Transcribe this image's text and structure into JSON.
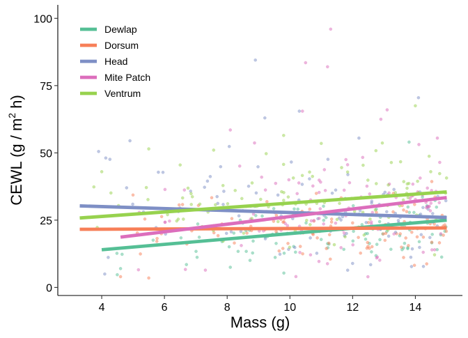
{
  "chart_data": {
    "type": "scatter",
    "title": "",
    "xlabel": "Mass (g)",
    "ylabel_parts": [
      "CEWL (g / m",
      "2",
      " h)"
    ],
    "xlim": [
      2.6,
      15.5
    ],
    "ylim": [
      -3,
      105
    ],
    "x_ticks": [
      4,
      6,
      8,
      10,
      12,
      14
    ],
    "y_ticks": [
      0,
      25,
      50,
      75,
      100
    ],
    "grid": false,
    "legend_position": "top-left",
    "point_count": 520,
    "series": [
      {
        "name": "Dewlap",
        "color": "#55BF95",
        "line": {
          "x": [
            4.0,
            15.0
          ],
          "y": [
            14.0,
            25.0
          ]
        },
        "points": {
          "x_range": [
            4.0,
            15.0
          ],
          "center": [
            14,
            25
          ],
          "spread": 6
        }
      },
      {
        "name": "Dorsum",
        "color": "#F77F58",
        "line": {
          "x": [
            3.3,
            15.0
          ],
          "y": [
            21.6,
            22.1
          ]
        },
        "points": {
          "x_range": [
            4.6,
            15.0
          ],
          "center": [
            21.6,
            22.1
          ],
          "spread": 6
        }
      },
      {
        "name": "Head",
        "color": "#7E8FC5",
        "line": {
          "x": [
            3.3,
            15.0
          ],
          "y": [
            30.3,
            26.0
          ]
        },
        "points": {
          "x_range": [
            3.3,
            15.0
          ],
          "center": [
            30.3,
            26.0
          ],
          "spread": 9
        }
      },
      {
        "name": "Mite Patch",
        "color": "#DC6EBC",
        "line": {
          "x": [
            4.6,
            15.0
          ],
          "y": [
            18.7,
            33.4
          ]
        },
        "points": {
          "x_range": [
            4.6,
            15.0
          ],
          "center": [
            18.7,
            33.4
          ],
          "spread": 9
        }
      },
      {
        "name": "Ventrum",
        "color": "#97D24E",
        "line": {
          "x": [
            3.3,
            15.0
          ],
          "y": [
            25.8,
            35.5
          ]
        },
        "points": {
          "x_range": [
            3.3,
            15.0
          ],
          "center": [
            25.8,
            35.5
          ],
          "spread": 9
        }
      }
    ],
    "outliers": [
      {
        "series": "Mite Patch",
        "x": 11.3,
        "y": 96
      },
      {
        "series": "Mite Patch",
        "x": 10.5,
        "y": 83.5
      },
      {
        "series": "Mite Patch",
        "x": 11.2,
        "y": 82
      },
      {
        "series": "Head",
        "x": 8.9,
        "y": 84.5
      },
      {
        "series": "Head",
        "x": 14.1,
        "y": 70.5
      },
      {
        "series": "Ventrum",
        "x": 14.0,
        "y": 67.5
      },
      {
        "series": "Mite Patch",
        "x": 13.1,
        "y": 66
      },
      {
        "series": "Head",
        "x": 10.3,
        "y": 65.5
      },
      {
        "series": "Mite Patch",
        "x": 10.4,
        "y": 65.5
      },
      {
        "series": "Head",
        "x": 9.2,
        "y": 63
      },
      {
        "series": "Mite Patch",
        "x": 12.9,
        "y": 62.5
      },
      {
        "series": "Mite Patch",
        "x": 8.1,
        "y": 58.5
      },
      {
        "series": "Ventrum",
        "x": 9.8,
        "y": 56.5
      },
      {
        "series": "Head",
        "x": 4.9,
        "y": 54.5
      },
      {
        "series": "Head",
        "x": 3.9,
        "y": 50.5
      },
      {
        "series": "Ventrum",
        "x": 5.5,
        "y": 51.5
      },
      {
        "series": "Ventrum",
        "x": 4.0,
        "y": 43
      },
      {
        "series": "Ventrum",
        "x": 6.5,
        "y": 45.5
      },
      {
        "series": "Head",
        "x": 12.2,
        "y": 55.5
      },
      {
        "series": "Mite Patch",
        "x": 14.7,
        "y": 55.5
      },
      {
        "series": "Dewlap",
        "x": 13.8,
        "y": 54
      },
      {
        "series": "Ventrum",
        "x": 11.0,
        "y": 53.5
      },
      {
        "series": "Dewlap",
        "x": 4.6,
        "y": 7
      },
      {
        "series": "Dorsum",
        "x": 4.6,
        "y": 4
      },
      {
        "series": "Dorsum",
        "x": 5.5,
        "y": 3.5
      },
      {
        "series": "Dewlap",
        "x": 6.7,
        "y": 8.5
      },
      {
        "series": "Dewlap",
        "x": 8.1,
        "y": 7.5
      }
    ]
  }
}
